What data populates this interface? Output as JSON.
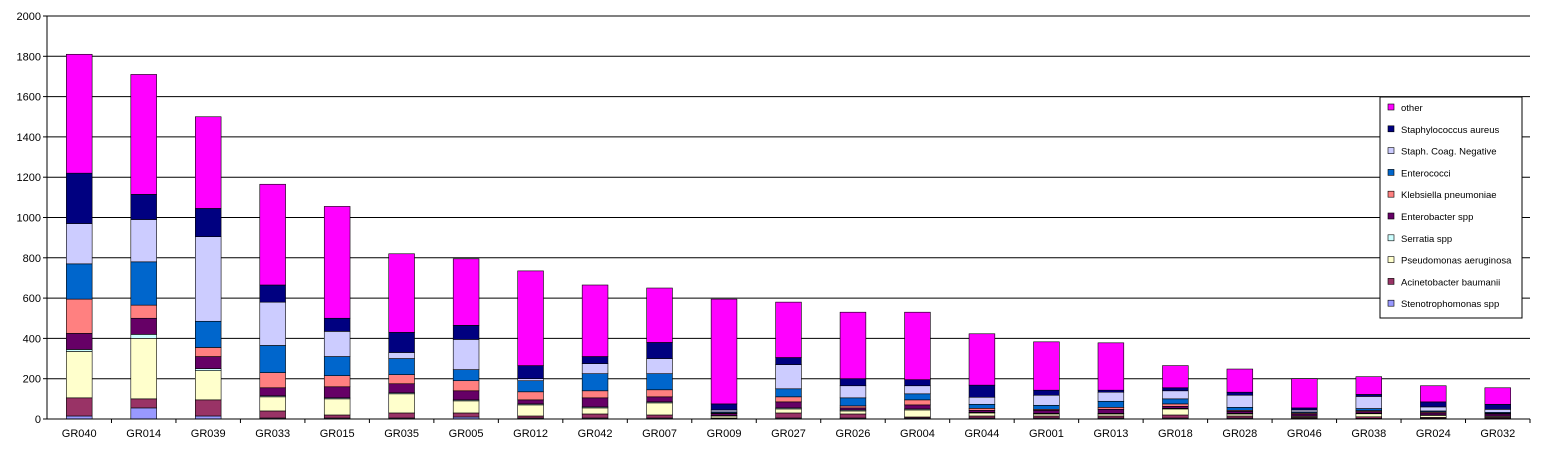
{
  "chart_data": {
    "type": "bar",
    "stacked": true,
    "title": "",
    "xlabel": "",
    "ylabel": "",
    "ylim": [
      0,
      2000
    ],
    "yticks": [
      "0",
      "200",
      "400",
      "600",
      "800",
      "1000",
      "1200",
      "1400",
      "1600",
      "1800",
      "2000"
    ],
    "grid": true,
    "legend_position": "right",
    "categories": [
      "GR040",
      "GR014",
      "GR039",
      "GR033",
      "GR015",
      "GR035",
      "GR005",
      "GR012",
      "GR042",
      "GR007",
      "GR009",
      "GR027",
      "GR026",
      "GR004",
      "GR044",
      "GR001",
      "GR013",
      "GR018",
      "GR028",
      "GR046",
      "GR038",
      "GR024",
      "GR032"
    ],
    "series": [
      {
        "name": "Stenotrophomonas spp",
        "color": "#9999ff",
        "values": [
          15,
          55,
          15,
          5,
          5,
          5,
          10,
          5,
          5,
          5,
          2,
          5,
          5,
          5,
          5,
          5,
          5,
          5,
          5,
          3,
          3,
          3,
          3
        ]
      },
      {
        "name": "Acinetobacter baumanii",
        "color": "#993366",
        "values": [
          90,
          45,
          80,
          35,
          15,
          25,
          20,
          10,
          20,
          15,
          3,
          25,
          20,
          5,
          10,
          10,
          10,
          15,
          10,
          5,
          8,
          5,
          5
        ]
      },
      {
        "name": "Pseudomonas aeruginosa",
        "color": "#ffffcc",
        "values": [
          230,
          300,
          145,
          70,
          80,
          95,
          60,
          55,
          30,
          60,
          10,
          20,
          15,
          35,
          15,
          10,
          10,
          30,
          10,
          5,
          15,
          10,
          5
        ]
      },
      {
        "name": "Serratia spp",
        "color": "#ccffff",
        "values": [
          10,
          20,
          10,
          5,
          5,
          5,
          5,
          5,
          5,
          5,
          2,
          5,
          5,
          5,
          3,
          3,
          3,
          3,
          3,
          2,
          3,
          2,
          2
        ]
      },
      {
        "name": "Enterobacter spp",
        "color": "#660066",
        "values": [
          80,
          80,
          60,
          40,
          55,
          45,
          45,
          20,
          45,
          25,
          10,
          30,
          10,
          20,
          10,
          15,
          20,
          10,
          10,
          10,
          8,
          10,
          10
        ]
      },
      {
        "name": "Klebsiella pneumoniae",
        "color": "#ff8080",
        "values": [
          170,
          65,
          45,
          75,
          55,
          45,
          50,
          40,
          35,
          35,
          3,
          25,
          10,
          25,
          10,
          5,
          10,
          12,
          5,
          5,
          5,
          5,
          3
        ]
      },
      {
        "name": "Enterococci",
        "color": "#0066cc",
        "values": [
          175,
          215,
          130,
          135,
          95,
          80,
          55,
          55,
          85,
          80,
          5,
          40,
          40,
          30,
          20,
          20,
          30,
          25,
          15,
          5,
          10,
          5,
          5
        ]
      },
      {
        "name": "Staph. Coag. Negative",
        "color": "#ccccff",
        "values": [
          200,
          210,
          420,
          215,
          125,
          30,
          150,
          10,
          50,
          75,
          10,
          120,
          60,
          40,
          35,
          50,
          45,
          40,
          60,
          10,
          60,
          20,
          15
        ]
      },
      {
        "name": "Staphylococcus aureus",
        "color": "#000080",
        "values": [
          250,
          125,
          140,
          85,
          65,
          100,
          70,
          65,
          35,
          80,
          30,
          35,
          35,
          30,
          60,
          25,
          10,
          15,
          15,
          10,
          10,
          25,
          25
        ]
      },
      {
        "name": "other",
        "color": "#ff00ff",
        "values": [
          590,
          595,
          455,
          500,
          555,
          390,
          330,
          470,
          355,
          270,
          520,
          275,
          330,
          335,
          255,
          240,
          235,
          110,
          115,
          145,
          88,
          80,
          82
        ]
      }
    ],
    "legend_order": [
      "other",
      "Staphylococcus aureus",
      "Staph. Coag. Negative",
      "Enterococci",
      "Klebsiella pneumoniae",
      "Enterobacter spp",
      "Serratia spp",
      "Pseudomonas aeruginosa",
      "Acinetobacter baumanii",
      "Stenotrophomonas spp"
    ]
  }
}
